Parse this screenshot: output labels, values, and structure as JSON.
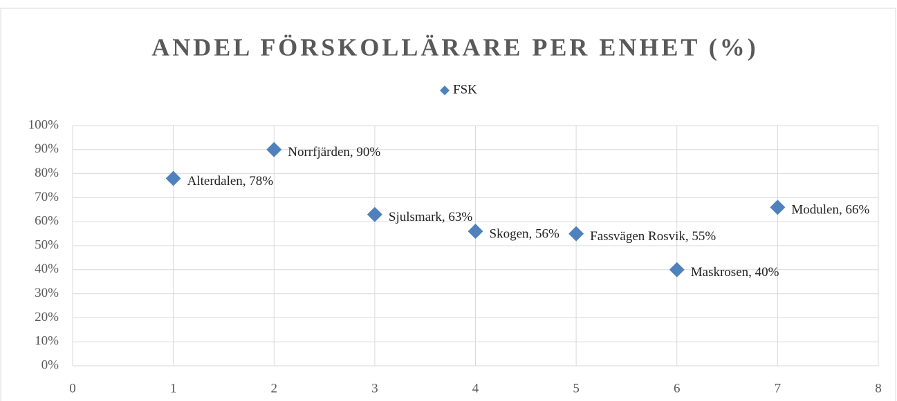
{
  "chart_data": {
    "type": "scatter",
    "title": "ANDEL FÖRSKOLLÄRARE PER ENHET (%)",
    "series": [
      {
        "name": "FSK",
        "color": "#4f81bd",
        "x": [
          1,
          2,
          3,
          4,
          5,
          6,
          7
        ],
        "values": [
          78,
          90,
          63,
          56,
          55,
          40,
          66
        ],
        "value_labels": [
          "Alterdalen, 78%",
          "Norrfjärden, 90%",
          "Sjulsmark, 63%",
          "Skogen, 56%",
          "Fassvägen Rosvik, 55%",
          "Maskrosen, 40%",
          "Modulen, 66%"
        ]
      }
    ],
    "xlim": [
      0,
      8
    ],
    "xticks": [
      0,
      1,
      2,
      3,
      4,
      5,
      6,
      7,
      8
    ],
    "ylim": [
      0,
      100
    ],
    "yticks": [
      {
        "value": 0,
        "label": "0%"
      },
      {
        "value": 10,
        "label": "10%"
      },
      {
        "value": 20,
        "label": "20%"
      },
      {
        "value": 30,
        "label": "30%"
      },
      {
        "value": 40,
        "label": "40%"
      },
      {
        "value": 50,
        "label": "50%"
      },
      {
        "value": 60,
        "label": "60%"
      },
      {
        "value": 70,
        "label": "70%"
      },
      {
        "value": 80,
        "label": "80%"
      },
      {
        "value": 90,
        "label": "90%"
      },
      {
        "value": 100,
        "label": "100%"
      }
    ],
    "grid": true,
    "legend": "top"
  }
}
